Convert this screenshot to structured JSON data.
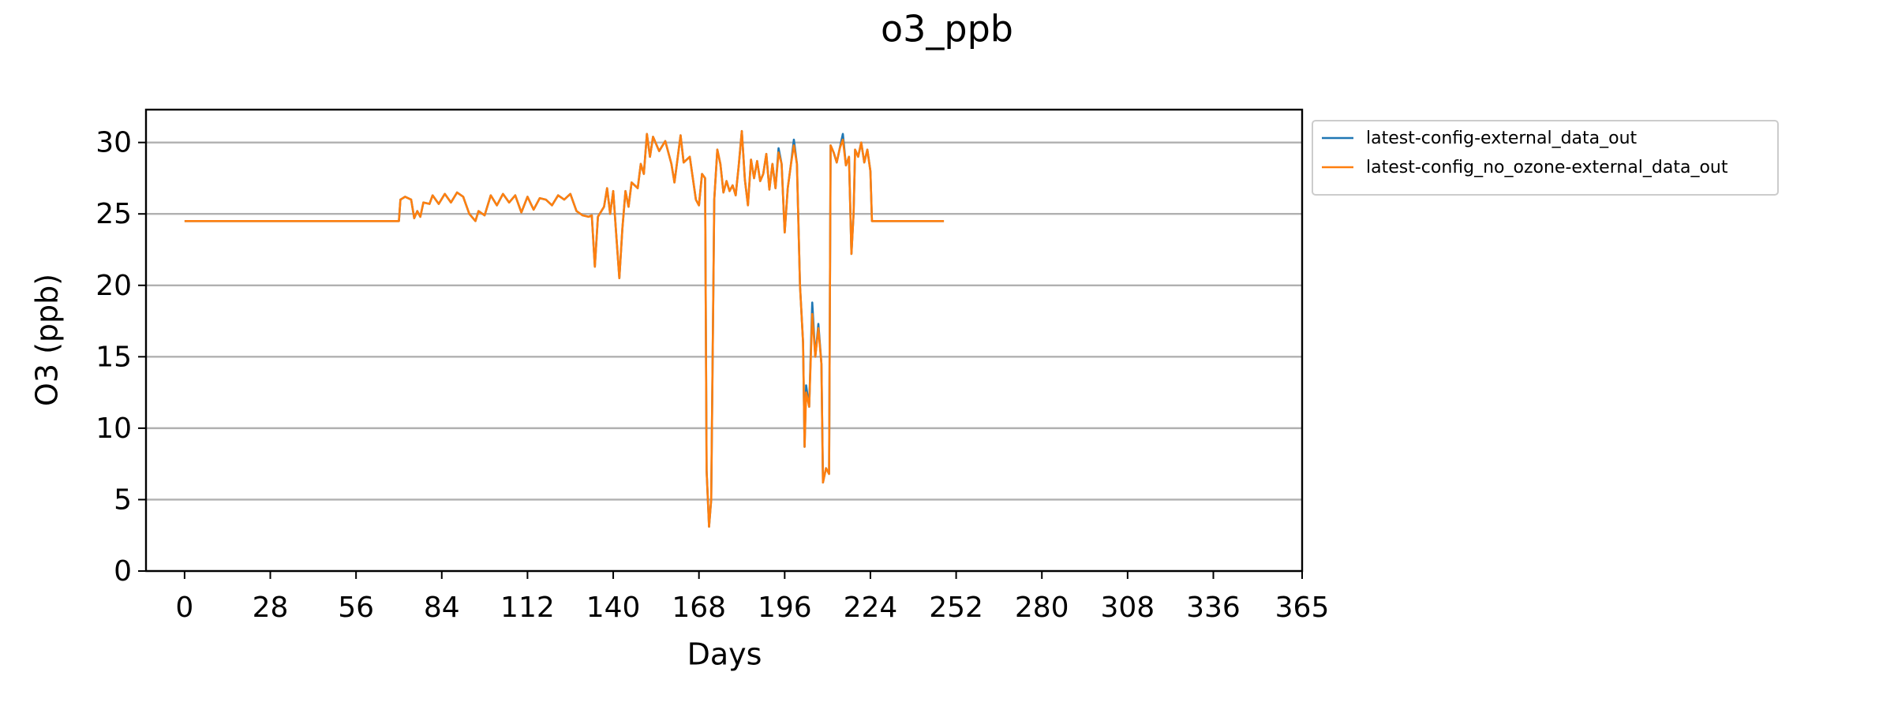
{
  "chart_data": {
    "type": "line",
    "title": "o3_ppb",
    "xlabel": "Days",
    "ylabel": "O3 (ppb)",
    "x": [
      0,
      70,
      70.5,
      72,
      74,
      75,
      76,
      77,
      78,
      80,
      81,
      83,
      85,
      87,
      89,
      91,
      93,
      95,
      96,
      98,
      100,
      102,
      104,
      106,
      108,
      110,
      112,
      114,
      116,
      118,
      120,
      122,
      124,
      126,
      128,
      130,
      132,
      133,
      134,
      135,
      137,
      138,
      139,
      140,
      141,
      142,
      143,
      144,
      145,
      146,
      148,
      149,
      150,
      151,
      152,
      153,
      155,
      157,
      159,
      160,
      162,
      163,
      165,
      166,
      167,
      168,
      169,
      170,
      170.5,
      171.3,
      172,
      173,
      174,
      175,
      176,
      177,
      178,
      179,
      180,
      181,
      182,
      183,
      184,
      185,
      186,
      187,
      188,
      189,
      190,
      191,
      192,
      193,
      194,
      195,
      196,
      197,
      198,
      199,
      200,
      201,
      202,
      202.5,
      203,
      204,
      205,
      206,
      207,
      208,
      208.5,
      209.5,
      210.5,
      211,
      212,
      213,
      214,
      215,
      216,
      217,
      217.8,
      218.5,
      219,
      220,
      221,
      222,
      223,
      224,
      224.5,
      248
    ],
    "series": [
      {
        "name": "latest-config-external_data_out",
        "color": "#1f77b4",
        "values": [
          24.5,
          24.5,
          26,
          26.2,
          26,
          24.7,
          25.2,
          24.8,
          25.8,
          25.7,
          26.3,
          25.7,
          26.4,
          25.8,
          26.5,
          26.2,
          25.0,
          24.5,
          25.2,
          24.9,
          26.3,
          25.6,
          26.4,
          25.8,
          26.3,
          25.1,
          26.2,
          25.3,
          26.1,
          26.0,
          25.6,
          26.3,
          26.0,
          26.4,
          25.2,
          24.9,
          24.8,
          24.9,
          21.3,
          24.8,
          25.5,
          26.8,
          25.0,
          26.6,
          23.5,
          20.5,
          24.0,
          26.6,
          25.5,
          27.2,
          26.8,
          28.5,
          27.8,
          30.6,
          29.0,
          30.4,
          29.4,
          30.1,
          28.5,
          27.2,
          30.5,
          28.6,
          29.0,
          27.5,
          26.0,
          25.6,
          27.8,
          27.5,
          7,
          3.1,
          5,
          26,
          29.5,
          28.5,
          26.5,
          27.3,
          26.6,
          27.0,
          26.3,
          28.4,
          30.8,
          27.4,
          25.6,
          28.8,
          27.5,
          28.7,
          27.3,
          27.8,
          29.2,
          26.7,
          28.5,
          26.8,
          29.6,
          28.5,
          23.7,
          26.8,
          28.4,
          30.2,
          28.5,
          20,
          16,
          8.7,
          13.0,
          11.5,
          18.8,
          15.0,
          17.3,
          14.5,
          6.2,
          7.2,
          6.8,
          29.8,
          29.3,
          28.6,
          29.6,
          30.6,
          28.4,
          29.0,
          22.2,
          25,
          29.5,
          29.0,
          30.0,
          28.6,
          29.5,
          28.0,
          24.5,
          24.5
        ]
      },
      {
        "name": "latest-config_no_ozone-external_data_out",
        "color": "#ff7f0e",
        "values": [
          24.5,
          24.5,
          26,
          26.2,
          26,
          24.7,
          25.2,
          24.8,
          25.8,
          25.7,
          26.3,
          25.7,
          26.4,
          25.8,
          26.5,
          26.2,
          25.0,
          24.5,
          25.2,
          24.9,
          26.3,
          25.6,
          26.4,
          25.8,
          26.3,
          25.1,
          26.2,
          25.3,
          26.1,
          26.0,
          25.6,
          26.3,
          26.0,
          26.4,
          25.2,
          24.9,
          24.8,
          24.9,
          21.3,
          24.8,
          25.5,
          26.8,
          25.0,
          26.6,
          23.5,
          20.5,
          24.0,
          26.6,
          25.5,
          27.2,
          26.8,
          28.5,
          27.8,
          30.6,
          29.0,
          30.4,
          29.4,
          30.1,
          28.5,
          27.2,
          30.5,
          28.6,
          29.0,
          27.5,
          26.0,
          25.6,
          27.8,
          27.5,
          7,
          3.1,
          5,
          26,
          29.5,
          28.5,
          26.5,
          27.3,
          26.6,
          27.0,
          26.3,
          28.4,
          30.8,
          27.4,
          25.6,
          28.8,
          27.5,
          28.7,
          27.3,
          27.8,
          29.2,
          26.7,
          28.5,
          26.8,
          29.3,
          28.5,
          23.7,
          26.8,
          28.4,
          29.8,
          28.5,
          20,
          16,
          8.7,
          12.5,
          11.5,
          18.0,
          15.0,
          17.0,
          14.5,
          6.2,
          7.2,
          6.8,
          29.8,
          29.3,
          28.6,
          29.6,
          30.2,
          28.4,
          29.0,
          22.2,
          25,
          29.5,
          29.0,
          30.0,
          28.6,
          29.5,
          28.0,
          24.5,
          24.5
        ]
      }
    ],
    "xlim": [
      -12.6,
      365
    ],
    "xticks": [
      0,
      28,
      56,
      84,
      112,
      140,
      168,
      196,
      224,
      252,
      280,
      308,
      336,
      365
    ],
    "ylim": [
      0,
      32.3
    ],
    "yticks": [
      0,
      5,
      10,
      15,
      20,
      25,
      30
    ],
    "grid": "y",
    "legend": "outside upper right"
  }
}
